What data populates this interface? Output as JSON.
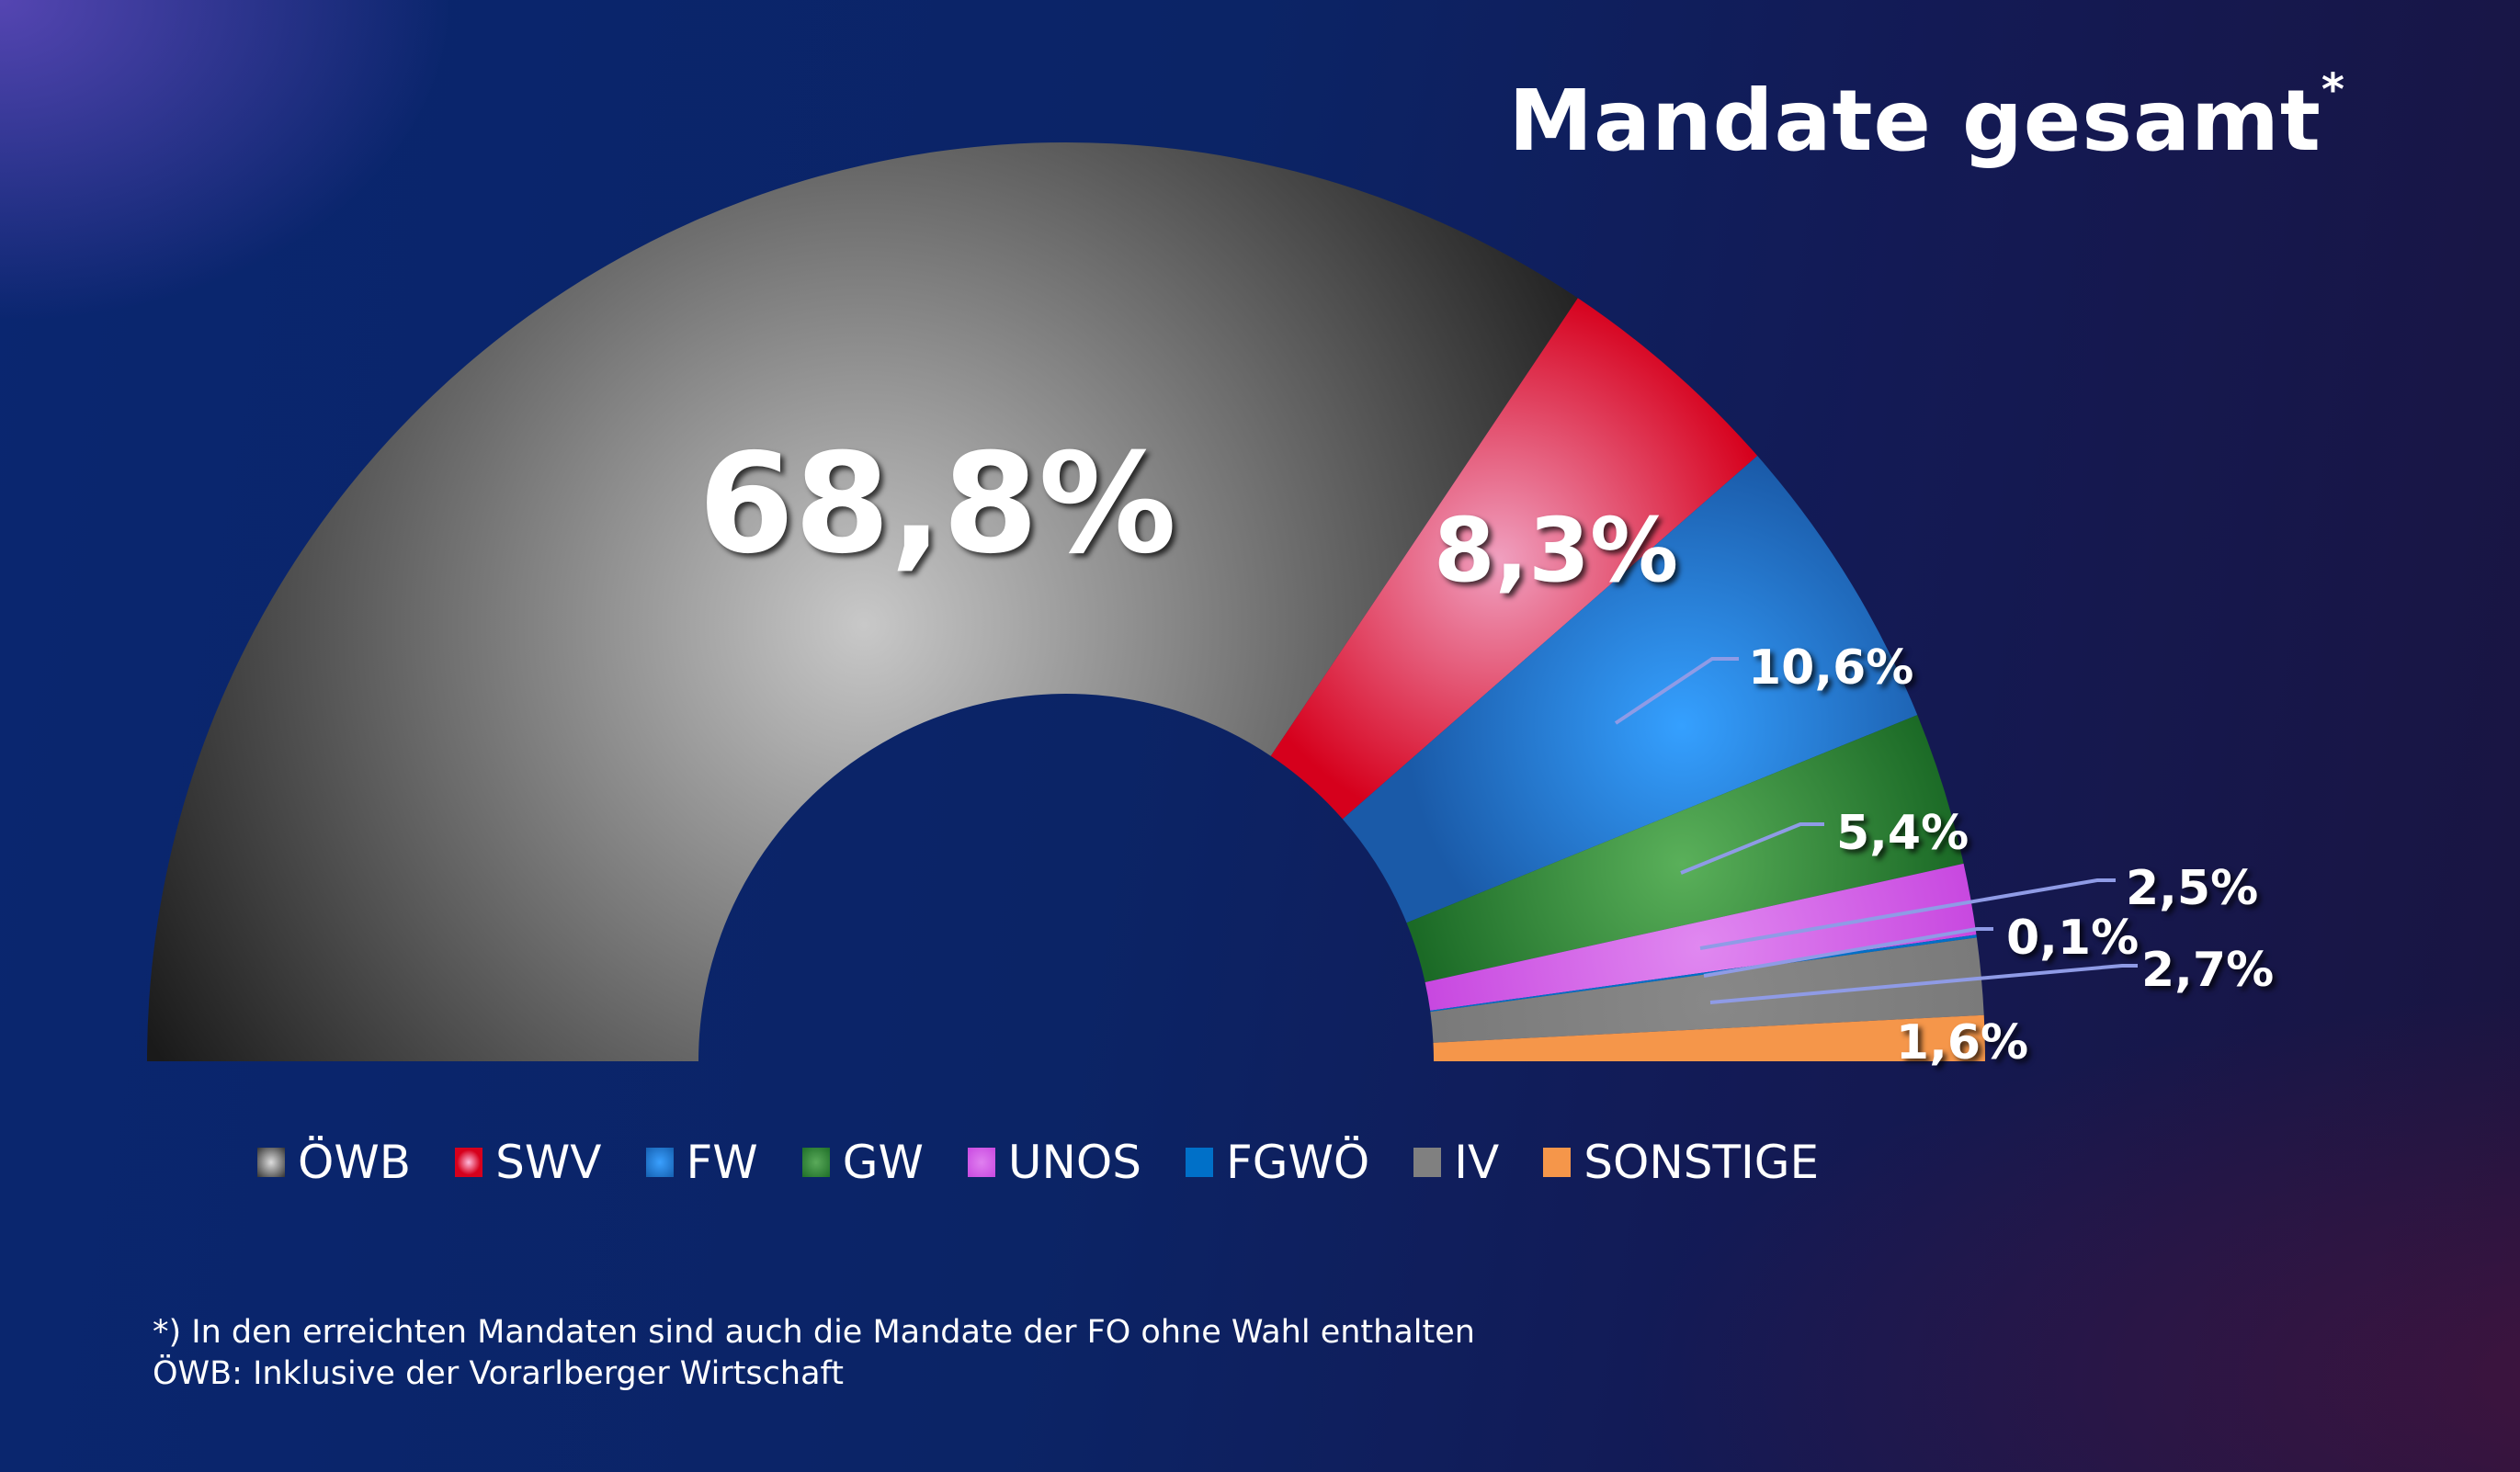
{
  "title": "Mandate gesamt",
  "title_marker": "*",
  "chart_data": {
    "type": "pie",
    "variant": "half-donut",
    "categories": [
      "ÖWB",
      "SWV",
      "FW",
      "GW",
      "UNOS",
      "FGWÖ",
      "IV",
      "SONSTIGE"
    ],
    "values": [
      68.8,
      8.3,
      10.6,
      5.4,
      2.5,
      0.1,
      2.7,
      1.6
    ],
    "data_labels": [
      "68,8%",
      "8,3%",
      "10,6%",
      "5,4%",
      "2,5%",
      "0,1%",
      "2,7%",
      "1,6%"
    ],
    "colors": [
      "#8a8a8a",
      "#d6001c",
      "#2a8fe6",
      "#1e6e28",
      "#c848e0",
      "#0070c8",
      "#808080",
      "#f5964a"
    ],
    "legend_placement": "bottom"
  },
  "legend": [
    {
      "label": "ÖWB",
      "color": "#7a7a7a"
    },
    {
      "label": "SWV",
      "color": "#d6001c"
    },
    {
      "label": "FW",
      "color": "#2a8fe6"
    },
    {
      "label": "GW",
      "color": "#1e6e28"
    },
    {
      "label": "UNOS",
      "color": "#c848e0"
    },
    {
      "label": "FGWÖ",
      "color": "#0070c8"
    },
    {
      "label": "IV",
      "color": "#808080"
    },
    {
      "label": "SONSTIGE",
      "color": "#f5964a"
    }
  ],
  "footnotes": [
    "*) In den erreichten Mandaten sind auch die Mandate der FO ohne Wahl enthalten",
    "ÖWB: Inklusive der Vorarlberger Wirtschaft"
  ]
}
